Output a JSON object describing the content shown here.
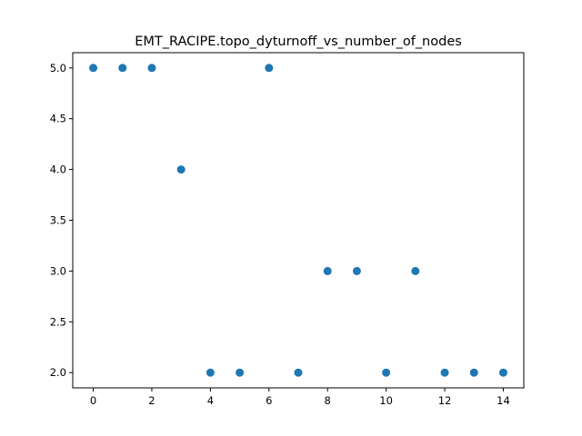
{
  "chart_data": {
    "type": "scatter",
    "title": "EMT_RACIPE.topo_dyturnoff_vs_number_of_nodes",
    "xlabel": "",
    "ylabel": "",
    "xlim": [
      -0.7,
      14.7
    ],
    "ylim": [
      1.85,
      5.15
    ],
    "xticks": [
      0,
      2,
      4,
      6,
      8,
      10,
      12,
      14
    ],
    "xtick_labels": [
      "0",
      "2",
      "4",
      "6",
      "8",
      "10",
      "12",
      "14"
    ],
    "yticks": [
      2.0,
      2.5,
      3.0,
      3.5,
      4.0,
      4.5,
      5.0
    ],
    "ytick_labels": [
      "2.0",
      "2.5",
      "3.0",
      "3.5",
      "4.0",
      "4.5",
      "5.0"
    ],
    "grid": false,
    "marker_color": "#1f77b4",
    "x": [
      0,
      1,
      2,
      3,
      4,
      5,
      6,
      7,
      8,
      9,
      10,
      11,
      12,
      13,
      14
    ],
    "y": [
      5,
      5,
      5,
      4,
      2,
      2,
      5,
      2,
      3,
      3,
      2,
      3,
      2,
      2,
      2
    ]
  }
}
